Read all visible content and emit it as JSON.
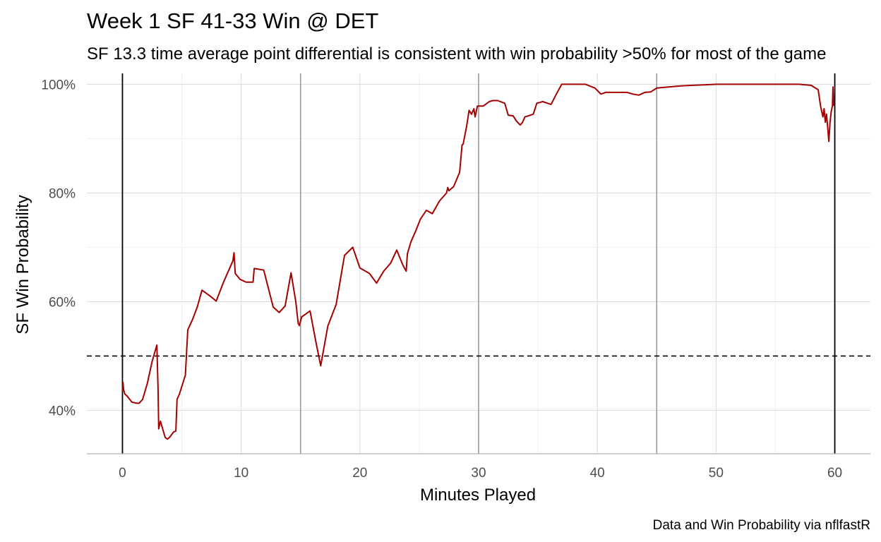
{
  "chart_data": {
    "type": "line",
    "title": "Week 1 SF 41-33 Win @ DET",
    "subtitle": "SF 13.3 time average point differential is consistent with win probability >50% for most of the game",
    "xlabel": "Minutes Played",
    "ylabel": "SF Win Probability",
    "caption": "Data and Win Probability via nflfastR",
    "xlim": [
      -3,
      63
    ],
    "ylim": [
      0.32,
      1.02
    ],
    "x_ticks": [
      0,
      10,
      20,
      30,
      40,
      50,
      60
    ],
    "x_tick_labels": [
      "0",
      "10",
      "20",
      "30",
      "40",
      "50",
      "60"
    ],
    "y_ticks": [
      0.4,
      0.6,
      0.8,
      1.0
    ],
    "y_tick_labels": [
      "40%",
      "60%",
      "80%",
      "100%"
    ],
    "grid": true,
    "reference_lines": {
      "horizontal_dashed": 0.5,
      "game_bounds": [
        0,
        60
      ],
      "quarter_breaks": [
        15,
        30,
        45
      ]
    },
    "colors": {
      "line": "#a50000",
      "grid_major": "#dedede",
      "grid_minor": "#ececec",
      "quarter_lines": "#9a9a9a",
      "game_bounds": "#000000",
      "tick_text": "#4d4d4d"
    },
    "series": [
      {
        "x": [
          0,
          0.05,
          0.1,
          0.2,
          0.4,
          0.8,
          1.2,
          1.4,
          1.7,
          2.1,
          2.5,
          2.9,
          3.0,
          3.05,
          3.2,
          3.4,
          3.6,
          3.8,
          4.0,
          4.3,
          4.5,
          4.6,
          4.8,
          5.3,
          5.5,
          5.9,
          6.3,
          6.7,
          7.4,
          7.9,
          8.5,
          9.1,
          9.3,
          9.4,
          9.5,
          9.9,
          10.4,
          11.0,
          11.1,
          11.9,
          12.7,
          13.2,
          13.7,
          14.2,
          14.6,
          14.8,
          14.9,
          15.1,
          15.5,
          15.8,
          16.3,
          16.7,
          17.3,
          18.0,
          18.7,
          19.4,
          20.0,
          20.8,
          21.4,
          22.0,
          22.6,
          23.1,
          23.6,
          23.9,
          24.0,
          24.3,
          24.7,
          25.1,
          25.6,
          26.1,
          26.7,
          27.3,
          27.4,
          27.5,
          27.9,
          28.4,
          28.6,
          28.7,
          29.0,
          29.2,
          29.4,
          29.6,
          29.7,
          29.9,
          30.1,
          30.4,
          30.9,
          31.2,
          31.6,
          32.2,
          32.5,
          32.9,
          33.2,
          33.5,
          33.7,
          33.9,
          34.2,
          34.6,
          34.9,
          35.4,
          36.1,
          36.6,
          37.0,
          37.4,
          38.0,
          39.0,
          39.8,
          40.3,
          40.7,
          41.5,
          42.5,
          43.0,
          43.5,
          44.0,
          44.5,
          45.0,
          46.0,
          47.0,
          48.0,
          49.0,
          50.0,
          51.0,
          52.0,
          53.0,
          54.0,
          55.0,
          56.0,
          57.0,
          58.0,
          58.6,
          58.8,
          59.0,
          59.1,
          59.2,
          59.3,
          59.4,
          59.5,
          59.6,
          59.7,
          59.8,
          59.85,
          59.9
        ],
        "values": [
          0.435,
          0.451,
          0.438,
          0.43,
          0.426,
          0.415,
          0.413,
          0.413,
          0.42,
          0.45,
          0.49,
          0.52,
          0.44,
          0.366,
          0.38,
          0.365,
          0.35,
          0.347,
          0.351,
          0.36,
          0.362,
          0.42,
          0.43,
          0.465,
          0.548,
          0.567,
          0.59,
          0.621,
          0.61,
          0.601,
          0.635,
          0.665,
          0.675,
          0.69,
          0.652,
          0.641,
          0.636,
          0.636,
          0.661,
          0.658,
          0.59,
          0.58,
          0.592,
          0.653,
          0.6,
          0.56,
          0.556,
          0.572,
          0.578,
          0.583,
          0.525,
          0.482,
          0.555,
          0.595,
          0.685,
          0.7,
          0.662,
          0.652,
          0.634,
          0.656,
          0.671,
          0.695,
          0.668,
          0.656,
          0.688,
          0.71,
          0.73,
          0.752,
          0.768,
          0.762,
          0.785,
          0.8,
          0.81,
          0.804,
          0.812,
          0.838,
          0.888,
          0.89,
          0.924,
          0.952,
          0.945,
          0.955,
          0.94,
          0.96,
          0.96,
          0.96,
          0.968,
          0.97,
          0.97,
          0.965,
          0.943,
          0.942,
          0.932,
          0.925,
          0.93,
          0.94,
          0.942,
          0.945,
          0.965,
          0.968,
          0.963,
          0.984,
          1.0,
          1.0,
          1.0,
          1.0,
          0.993,
          0.982,
          0.985,
          0.985,
          0.985,
          0.982,
          0.98,
          0.985,
          0.986,
          0.993,
          0.995,
          0.997,
          0.998,
          0.999,
          1.0,
          1.0,
          1.0,
          1.0,
          1.0,
          1.0,
          1.0,
          1.0,
          0.998,
          0.99,
          0.96,
          0.94,
          0.955,
          0.93,
          0.945,
          0.92,
          0.895,
          0.93,
          0.95,
          0.96,
          0.995,
          0.96
        ]
      }
    ]
  }
}
